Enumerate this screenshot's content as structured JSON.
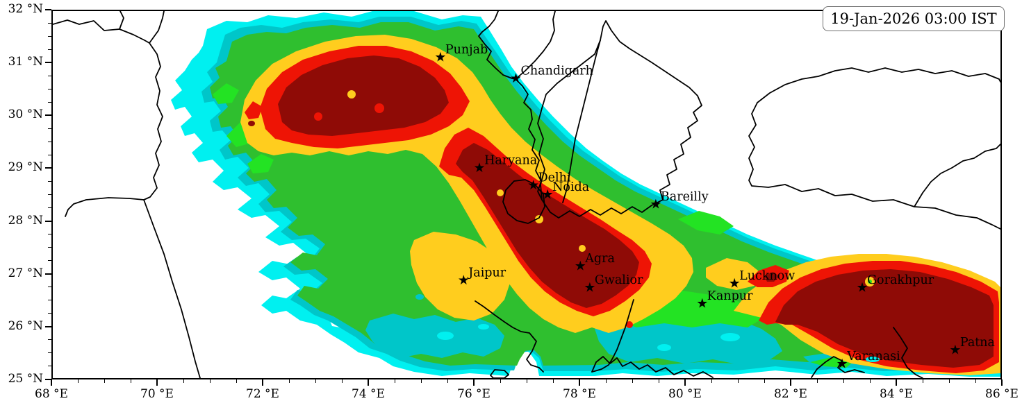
{
  "timestamp": {
    "label": "19-Jan-2026 03:00 IST"
  },
  "axes": {
    "x": {
      "min": 68,
      "max": 86,
      "major_step": 2,
      "minor_step": 0.5,
      "suffix": " °E"
    },
    "y": {
      "min": 25,
      "max": 32,
      "major_step": 1,
      "minor_step": 0.25,
      "suffix": " °N"
    }
  },
  "cities": [
    {
      "name": "Punjab",
      "lon": 75.34,
      "lat": 31.13
    },
    {
      "name": "Chandigarh",
      "lon": 76.77,
      "lat": 30.73
    },
    {
      "name": "Haryana",
      "lon": 76.08,
      "lat": 29.04
    },
    {
      "name": "Delhi",
      "lon": 77.1,
      "lat": 28.71
    },
    {
      "name": "Noida",
      "lon": 77.37,
      "lat": 28.53
    },
    {
      "name": "Bareilly",
      "lon": 79.42,
      "lat": 28.35
    },
    {
      "name": "Jaipur",
      "lon": 75.78,
      "lat": 26.91
    },
    {
      "name": "Agra",
      "lon": 77.99,
      "lat": 27.18
    },
    {
      "name": "Gwalior",
      "lon": 78.17,
      "lat": 26.77
    },
    {
      "name": "Lucknow",
      "lon": 80.91,
      "lat": 26.85
    },
    {
      "name": "Kanpur",
      "lon": 80.3,
      "lat": 26.47
    },
    {
      "name": "Gorakhpur",
      "lon": 83.33,
      "lat": 26.77
    },
    {
      "name": "Varanasi",
      "lon": 82.95,
      "lat": 25.33
    },
    {
      "name": "Patna",
      "lon": 85.09,
      "lat": 25.59
    }
  ],
  "palette": {
    "white": "#FFFFFF",
    "cyan": "#00F0F0",
    "teal": "#00C6C9",
    "green": "#2FBF2F",
    "bright_green": "#23E323",
    "yellow": "#FFCD1E",
    "red": "#EE1405",
    "dark_red": "#8F0B06",
    "border_line": "#000000",
    "marker": "#000000"
  }
}
